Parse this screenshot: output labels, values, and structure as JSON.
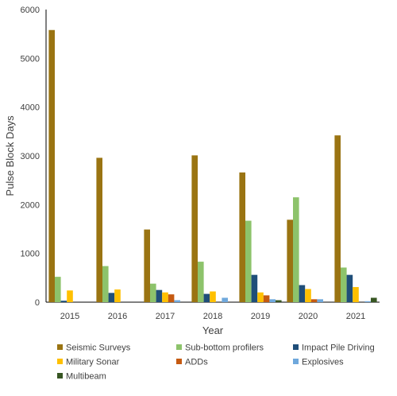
{
  "chart_data": {
    "type": "bar",
    "title": "",
    "xlabel": "Year",
    "ylabel": "Pulse Block Days",
    "ylim": [
      0,
      6000
    ],
    "yticks": [
      "0",
      "1000",
      "2000",
      "3000",
      "4000",
      "5000",
      "6000"
    ],
    "grid": false,
    "legend_position": "bottom",
    "categories": [
      "2015",
      "2016",
      "2017",
      "2018",
      "2019",
      "2020",
      "2021"
    ],
    "series": [
      {
        "name": "Seismic Surveys",
        "color": "#9a7412",
        "values": [
          5580,
          2960,
          1490,
          3010,
          2660,
          1690,
          3420
        ]
      },
      {
        "name": "Sub-bottom profilers",
        "color": "#8dc36b",
        "values": [
          520,
          740,
          380,
          830,
          1670,
          2150,
          710
        ]
      },
      {
        "name": "Impact Pile Driving",
        "color": "#1f4e79",
        "values": [
          30,
          190,
          250,
          170,
          560,
          350,
          560
        ]
      },
      {
        "name": "Military Sonar",
        "color": "#ffc000",
        "values": [
          240,
          260,
          200,
          220,
          200,
          270,
          310
        ]
      },
      {
        "name": "ADDs",
        "color": "#c55a11",
        "values": [
          0,
          0,
          160,
          0,
          140,
          60,
          0
        ]
      },
      {
        "name": "Explosives",
        "color": "#6fa8dc",
        "values": [
          0,
          0,
          40,
          90,
          60,
          60,
          20
        ]
      },
      {
        "name": "Multibeam",
        "color": "#375623",
        "values": [
          0,
          0,
          0,
          0,
          40,
          0,
          90
        ]
      }
    ]
  }
}
